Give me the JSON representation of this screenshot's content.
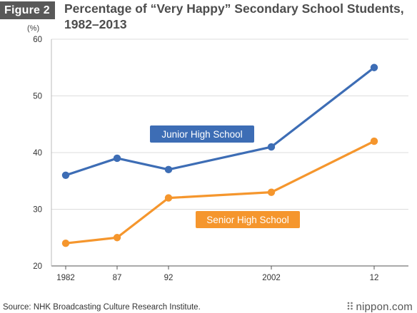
{
  "header": {
    "figure_label": "Figure 2",
    "title_line1": "Percentage of “Very Happy” Secondary School Students,",
    "title_line2": "1982–2013"
  },
  "chart_data": {
    "type": "line",
    "y_unit_label": "(%)",
    "categories": [
      "1982",
      "87",
      "92",
      "2002",
      "12"
    ],
    "x_years": [
      1982,
      1987,
      1992,
      2002,
      2012
    ],
    "ylim": [
      20,
      60
    ],
    "yticks": [
      20,
      30,
      40,
      50,
      60
    ],
    "grid": "horizontal",
    "series": [
      {
        "name": "Junior High School",
        "color": "#3d6db5",
        "values": [
          36,
          39,
          37,
          41,
          55
        ]
      },
      {
        "name": "Senior High School",
        "color": "#f5962d",
        "values": [
          24,
          25,
          32,
          33,
          42
        ]
      }
    ]
  },
  "footer": {
    "source": "Source: NHK Broadcasting Culture Research Institute.",
    "brand": "nippon.com"
  }
}
